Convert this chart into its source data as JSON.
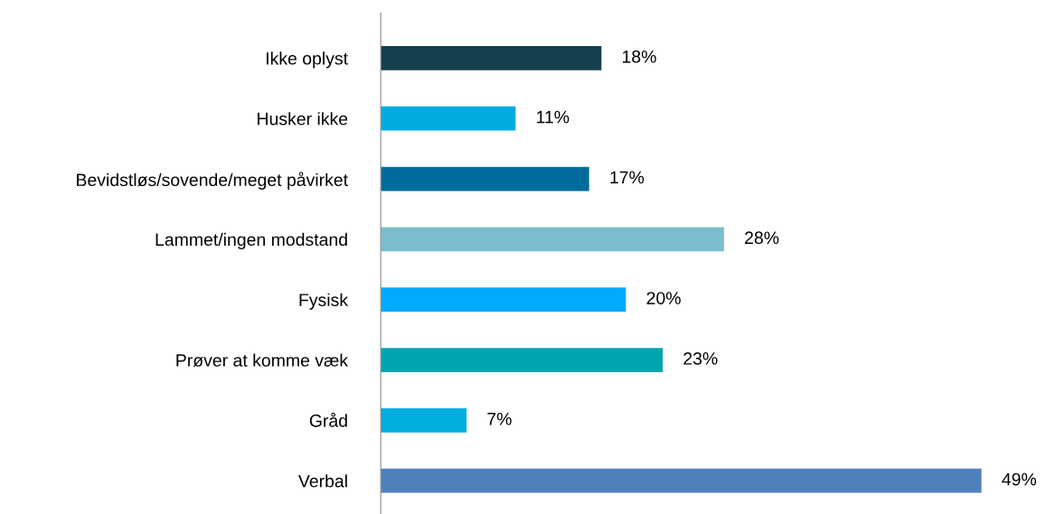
{
  "chart_data": {
    "type": "bar",
    "orientation": "horizontal",
    "categories": [
      "Ikke oplyst",
      "Husker ikke",
      "Bevidstløs/sovende/meget påvirket",
      "Lammet/ingen modstand",
      "Fysisk",
      "Prøver at komme væk",
      "Gråd",
      "Verbal"
    ],
    "values": [
      18,
      11,
      17,
      28,
      20,
      23,
      7,
      49
    ],
    "value_labels": [
      "18%",
      "11%",
      "17%",
      "28%",
      "20%",
      "23%",
      "7%",
      "49%"
    ],
    "colors": [
      "#143f4c",
      "#00abe1",
      "#006c9b",
      "#7bbdcc",
      "#00aaff",
      "#00a5b0",
      "#00aee0",
      "#4f81bd"
    ],
    "grid": false,
    "legend": false
  }
}
